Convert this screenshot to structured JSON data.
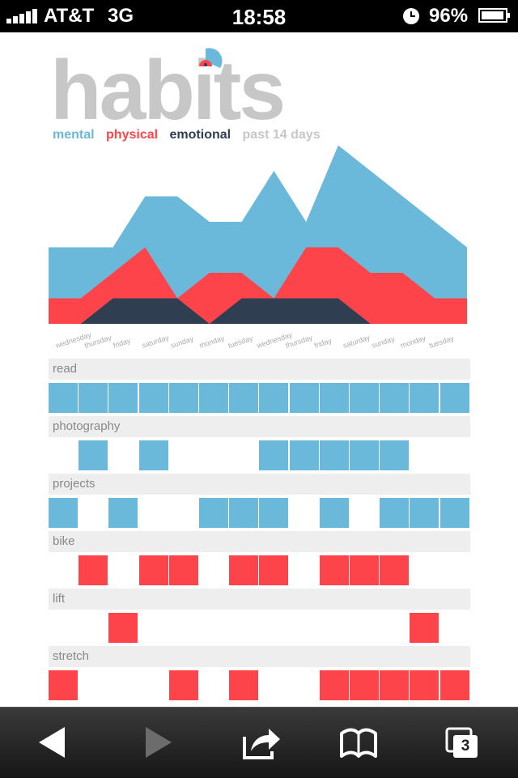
{
  "status_bar": {
    "carrier": "AT&T",
    "network": "3G",
    "time": "18:58",
    "battery": "96%",
    "battery_level": 0.96
  },
  "app": {
    "logo": "habits",
    "legend": {
      "mental": "mental",
      "physical": "physical",
      "emotional": "emotional",
      "range": "past 14 days"
    }
  },
  "colors": {
    "mental": "#6bb9da",
    "physical": "#fd444a",
    "emotional": "#2f3e50",
    "muted": "#c7c7c7"
  },
  "chart_data": {
    "type": "area",
    "categories": [
      "wednesday",
      "thursday",
      "friday",
      "saturday",
      "sunday",
      "monday",
      "tuesday",
      "wednesday",
      "thursday",
      "friday",
      "saturday",
      "sunday",
      "monday",
      "tuesday"
    ],
    "highlight_index": 13,
    "series": [
      {
        "name": "mental",
        "values": [
          3,
          3,
          3,
          5,
          5,
          4,
          4,
          6,
          4,
          7,
          6,
          5,
          4,
          3
        ]
      },
      {
        "name": "physical",
        "values": [
          1,
          1,
          2,
          3,
          1,
          2,
          2,
          1,
          3,
          3,
          2,
          2,
          1,
          1
        ]
      },
      {
        "name": "emotional",
        "values": [
          0,
          0,
          1,
          1,
          1,
          0,
          1,
          1,
          1,
          1,
          0,
          0,
          0,
          0
        ]
      }
    ]
  },
  "habits": [
    {
      "name": "read",
      "category": "mental",
      "days": [
        1,
        1,
        1,
        1,
        1,
        1,
        1,
        1,
        1,
        1,
        1,
        1,
        1,
        1
      ]
    },
    {
      "name": "photography",
      "category": "mental",
      "days": [
        0,
        1,
        0,
        1,
        0,
        0,
        0,
        1,
        1,
        1,
        1,
        1,
        0,
        0
      ]
    },
    {
      "name": "projects",
      "category": "mental",
      "days": [
        1,
        0,
        1,
        0,
        0,
        1,
        1,
        1,
        0,
        1,
        0,
        1,
        1,
        1
      ]
    },
    {
      "name": "bike",
      "category": "physical",
      "days": [
        0,
        1,
        0,
        1,
        1,
        0,
        1,
        1,
        0,
        1,
        1,
        1,
        0,
        0
      ]
    },
    {
      "name": "lift",
      "category": "physical",
      "days": [
        0,
        0,
        1,
        0,
        0,
        0,
        0,
        0,
        0,
        0,
        0,
        0,
        1,
        0
      ]
    },
    {
      "name": "stretch",
      "category": "physical",
      "days": [
        1,
        0,
        0,
        0,
        1,
        0,
        1,
        0,
        0,
        1,
        1,
        1,
        1,
        1
      ]
    }
  ],
  "toolbar": {
    "badge": "3",
    "icons": [
      "back-icon",
      "forward-icon",
      "share-icon",
      "bookmarks-icon",
      "tabs-icon"
    ]
  }
}
